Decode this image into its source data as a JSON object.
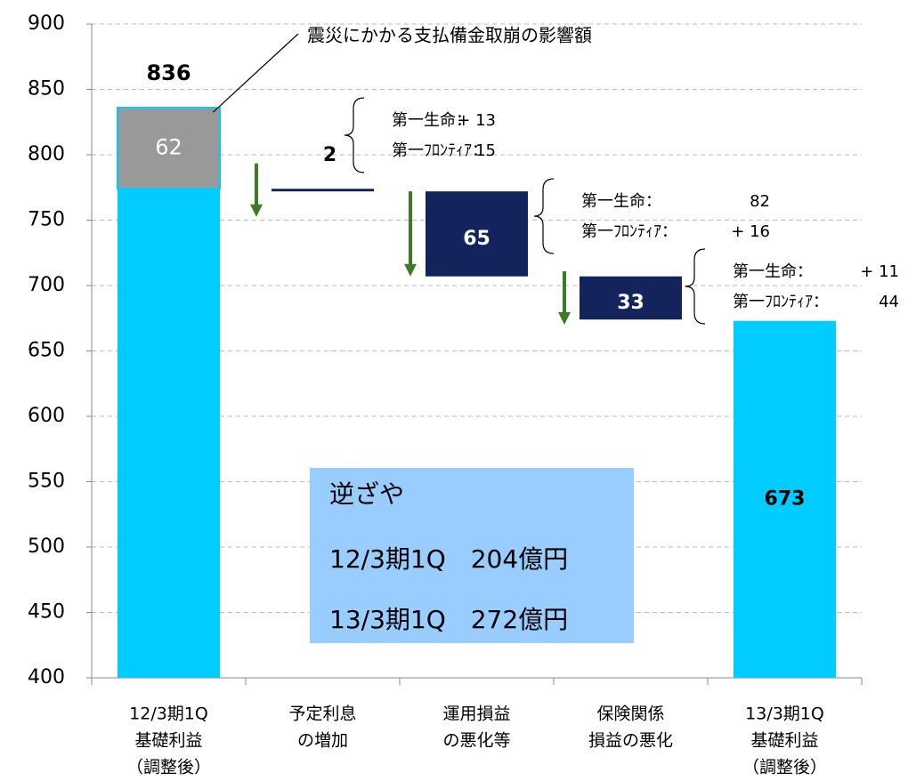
{
  "chart_data": {
    "type": "waterfall",
    "categories": [
      [
        "12/3期1Q",
        "基礎利益",
        "（調整後）"
      ],
      [
        "予定利息",
        "の増加"
      ],
      [
        "運用損益",
        "の悪化等"
      ],
      [
        "保険関係",
        "損益の悪化"
      ],
      [
        "13/3期1Q",
        "基礎利益",
        "（調整後）"
      ]
    ],
    "measure": [
      "absolute",
      "decrease",
      "decrease",
      "decrease",
      "absolute"
    ],
    "values": [
      774,
      2,
      65,
      33,
      673
    ],
    "value_labels": [
      null,
      "2",
      "65",
      "33",
      "673"
    ],
    "colors": [
      "#00ccff",
      "#13235b",
      "#13235b",
      "#13235b",
      "#00ccff"
    ],
    "one_off": {
      "value": 62,
      "color": "#999999",
      "label": "震災にかかる支払備金取崩の影響額"
    },
    "total_label": 836,
    "breakdowns": [
      null,
      [
        {
          "name": "第一生命：",
          "value": {
            "value": 13,
            "label": "+ 13"
          }
        },
        {
          "name": "第一ﾌﾛﾝﾃｨｱ：",
          "value": 15
        }
      ],
      [
        {
          "name": "第一生命：",
          "value": 82
        },
        {
          "name": "第一ﾌﾛﾝﾃｨｱ：",
          "value": {
            "value": 16,
            "label": "+ 16"
          }
        }
      ],
      [
        {
          "name": "第一生命：",
          "value": {
            "value": 11,
            "label": "+ 11"
          }
        },
        {
          "name": "第一ﾌﾛﾝﾃｨｱ：",
          "value": 44
        }
      ]
    ],
    "text_box": [
      "逆ざや",
      "12/3期1Q　204億円",
      "13/3期1Q　272億円"
    ],
    "ylim": [
      400,
      900
    ],
    "yticks": [
      400,
      450,
      500,
      550,
      600,
      650,
      700,
      750,
      800,
      850,
      900
    ],
    "grid": true
  }
}
